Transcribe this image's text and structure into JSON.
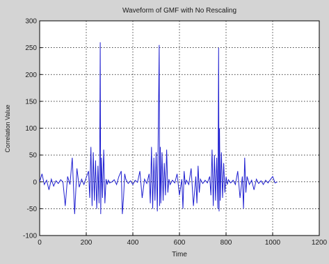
{
  "chart_data": {
    "type": "line",
    "title": "Waveform of GMF with No Rescaling",
    "xlabel": "Time",
    "ylabel": "Correlation Value",
    "xlim": [
      0,
      1200
    ],
    "ylim": [
      -100,
      300
    ],
    "xticks": [
      0,
      200,
      400,
      600,
      800,
      1000,
      1200
    ],
    "yticks": [
      -100,
      -50,
      0,
      50,
      100,
      150,
      200,
      250,
      300
    ],
    "xtick_labels": [
      "0",
      "200",
      "400",
      "600",
      "800",
      "1000",
      "1200"
    ],
    "ytick_labels": [
      "-100",
      "-50",
      "0",
      "50",
      "100",
      "150",
      "200",
      "250",
      "300"
    ],
    "grid": true,
    "line_color": "#1f1fd0",
    "series": [
      {
        "values_description_free": true,
        "x": [
          0,
          10,
          20,
          30,
          40,
          50,
          60,
          70,
          80,
          90,
          100,
          110,
          120,
          130,
          140,
          150,
          160,
          170,
          180,
          190,
          200,
          210,
          215,
          220,
          225,
          230,
          235,
          240,
          245,
          250,
          255,
          258,
          260,
          262,
          265,
          270,
          275,
          280,
          285,
          290,
          295,
          300,
          310,
          320,
          330,
          340,
          350,
          355,
          360,
          365,
          370,
          380,
          390,
          400,
          410,
          420,
          430,
          440,
          450,
          460,
          470,
          475,
          480,
          485,
          490,
          495,
          500,
          505,
          510,
          513,
          515,
          518,
          520,
          525,
          530,
          535,
          540,
          545,
          550,
          555,
          560,
          570,
          580,
          590,
          600,
          610,
          615,
          620,
          625,
          630,
          640,
          650,
          660,
          670,
          675,
          680,
          685,
          690,
          700,
          710,
          720,
          730,
          735,
          740,
          745,
          750,
          755,
          760,
          765,
          768,
          770,
          772,
          775,
          780,
          785,
          790,
          795,
          800,
          805,
          810,
          820,
          830,
          840,
          850,
          860,
          870,
          875,
          880,
          885,
          890,
          900,
          910,
          920,
          930,
          940,
          950,
          960,
          970,
          980,
          990,
          1000,
          1010,
          1020
        ],
        "y": [
          0,
          15,
          -5,
          3,
          -15,
          5,
          -8,
          2,
          -3,
          4,
          0,
          -45,
          10,
          -5,
          45,
          -60,
          25,
          -10,
          5,
          -5,
          8,
          20,
          -30,
          65,
          -45,
          55,
          -35,
          40,
          -50,
          30,
          -40,
          60,
          260,
          -60,
          45,
          -30,
          60,
          -40,
          5,
          -5,
          3,
          -2,
          0,
          4,
          -5,
          10,
          20,
          -60,
          -30,
          15,
          5,
          -3,
          2,
          -5,
          3,
          -1,
          20,
          -30,
          5,
          -3,
          15,
          -40,
          65,
          -50,
          45,
          -35,
          55,
          -55,
          125,
          255,
          -45,
          65,
          -40,
          55,
          -35,
          35,
          -25,
          60,
          -20,
          5,
          -5,
          3,
          -2,
          15,
          -25,
          5,
          -50,
          20,
          -5,
          3,
          -5,
          25,
          -45,
          10,
          -40,
          30,
          -20,
          5,
          -3,
          3,
          -2,
          10,
          -25,
          60,
          -45,
          50,
          -35,
          45,
          -50,
          250,
          -55,
          100,
          -35,
          55,
          -30,
          35,
          -20,
          10,
          -5,
          4,
          -2,
          3,
          -5,
          20,
          -30,
          10,
          -50,
          45,
          -20,
          10,
          -5,
          3,
          -15,
          5,
          -3,
          2,
          -5,
          3,
          -2,
          4,
          10,
          -2,
          0
        ]
      }
    ]
  }
}
